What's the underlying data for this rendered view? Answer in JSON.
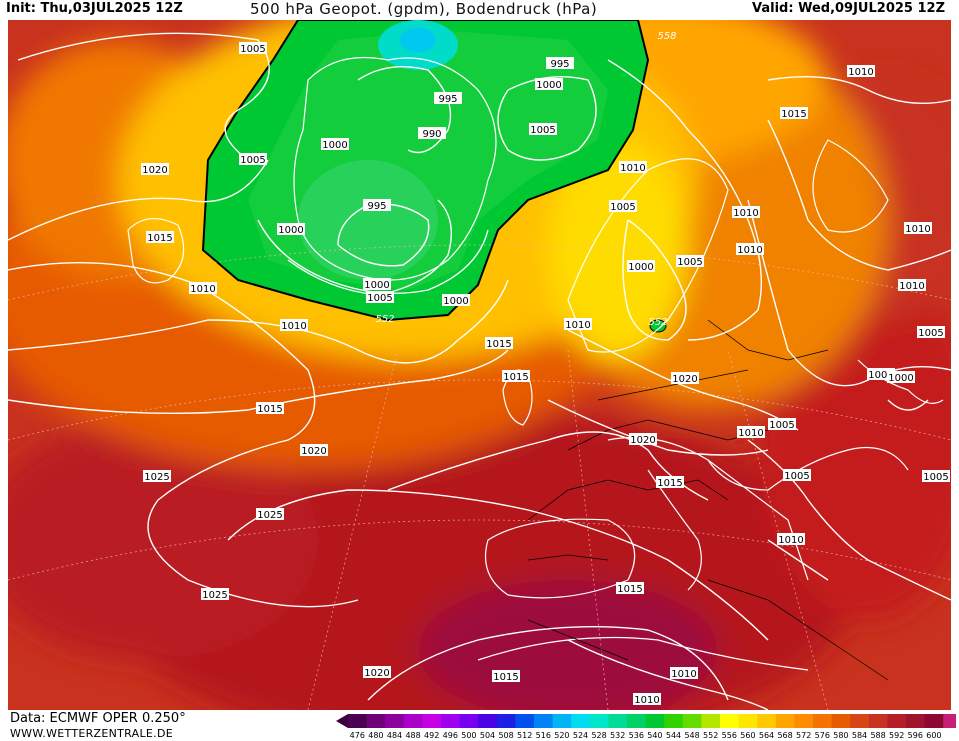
{
  "header": {
    "init": "Init: Thu,03JUL2025 12Z",
    "title": "500 hPa Geopot. (gpdm), Bodendruck (hPa)",
    "valid": "Valid: Wed,09JUL2025 12Z"
  },
  "footer": {
    "source": "Data: ECMWF OPER 0.250°",
    "site": "WWW.WETTERZENTRALE.DE"
  },
  "legend": {
    "labels": [
      "476",
      "480",
      "484",
      "488",
      "492",
      "496",
      "500",
      "504",
      "508",
      "512",
      "516",
      "520",
      "524",
      "528",
      "532",
      "536",
      "540",
      "544",
      "548",
      "552",
      "556",
      "560",
      "564",
      "568",
      "572",
      "576",
      "580",
      "584",
      "588",
      "592",
      "596",
      "600"
    ],
    "colors": [
      "#4a0050",
      "#6e0078",
      "#8c00a0",
      "#aa00c8",
      "#c800e6",
      "#a000f0",
      "#7800f0",
      "#4b00e6",
      "#1e1ee6",
      "#0050f0",
      "#0082f5",
      "#00b4f5",
      "#00dcf0",
      "#00e6c8",
      "#00dc96",
      "#00d264",
      "#00c832",
      "#32d200",
      "#64dc00",
      "#b4e600",
      "#ffff00",
      "#ffe600",
      "#ffc800",
      "#ffa500",
      "#ff8c00",
      "#f57300",
      "#e65a00",
      "#d74614",
      "#c83223",
      "#b41e28",
      "#a0142d",
      "#8c0a32",
      "#c81e78"
    ],
    "left_arrow_color": "#3c003c",
    "right_arrow_color": "#e600b4"
  },
  "isobars": [
    {
      "label": "1005"
    },
    {
      "label": "1020"
    },
    {
      "label": "1015"
    },
    {
      "label": "1010"
    },
    {
      "label": "1010"
    },
    {
      "label": "1005"
    },
    {
      "label": "1000"
    },
    {
      "label": "995"
    },
    {
      "label": "990"
    },
    {
      "label": "995"
    },
    {
      "label": "1000"
    },
    {
      "label": "1000"
    },
    {
      "label": "1005"
    },
    {
      "label": "1000"
    },
    {
      "label": "995"
    },
    {
      "label": "1000"
    },
    {
      "label": "1005"
    },
    {
      "label": "1010"
    },
    {
      "label": "1005"
    },
    {
      "label": "1000"
    },
    {
      "label": "1005"
    },
    {
      "label": "1010"
    },
    {
      "label": "1010"
    },
    {
      "label": "1010"
    },
    {
      "label": "1015"
    },
    {
      "label": "1010"
    },
    {
      "label": "1010"
    },
    {
      "label": "1010"
    },
    {
      "label": "1005"
    },
    {
      "label": "1005"
    },
    {
      "label": "1000"
    },
    {
      "label": "1005"
    },
    {
      "label": "1015"
    },
    {
      "label": "1015"
    },
    {
      "label": "1020"
    },
    {
      "label": "1010"
    },
    {
      "label": "1005"
    },
    {
      "label": "1005"
    },
    {
      "label": "1005"
    },
    {
      "label": "1020"
    },
    {
      "label": "1015"
    },
    {
      "label": "1015"
    },
    {
      "label": "1020"
    },
    {
      "label": "1025"
    },
    {
      "label": "1025"
    },
    {
      "label": "1025"
    },
    {
      "label": "1010"
    },
    {
      "label": "1015"
    },
    {
      "label": "1010"
    },
    {
      "label": "1020"
    },
    {
      "label": "1015"
    },
    {
      "label": "1010"
    }
  ],
  "geopot_labels": [
    "552",
    "552",
    "558"
  ]
}
